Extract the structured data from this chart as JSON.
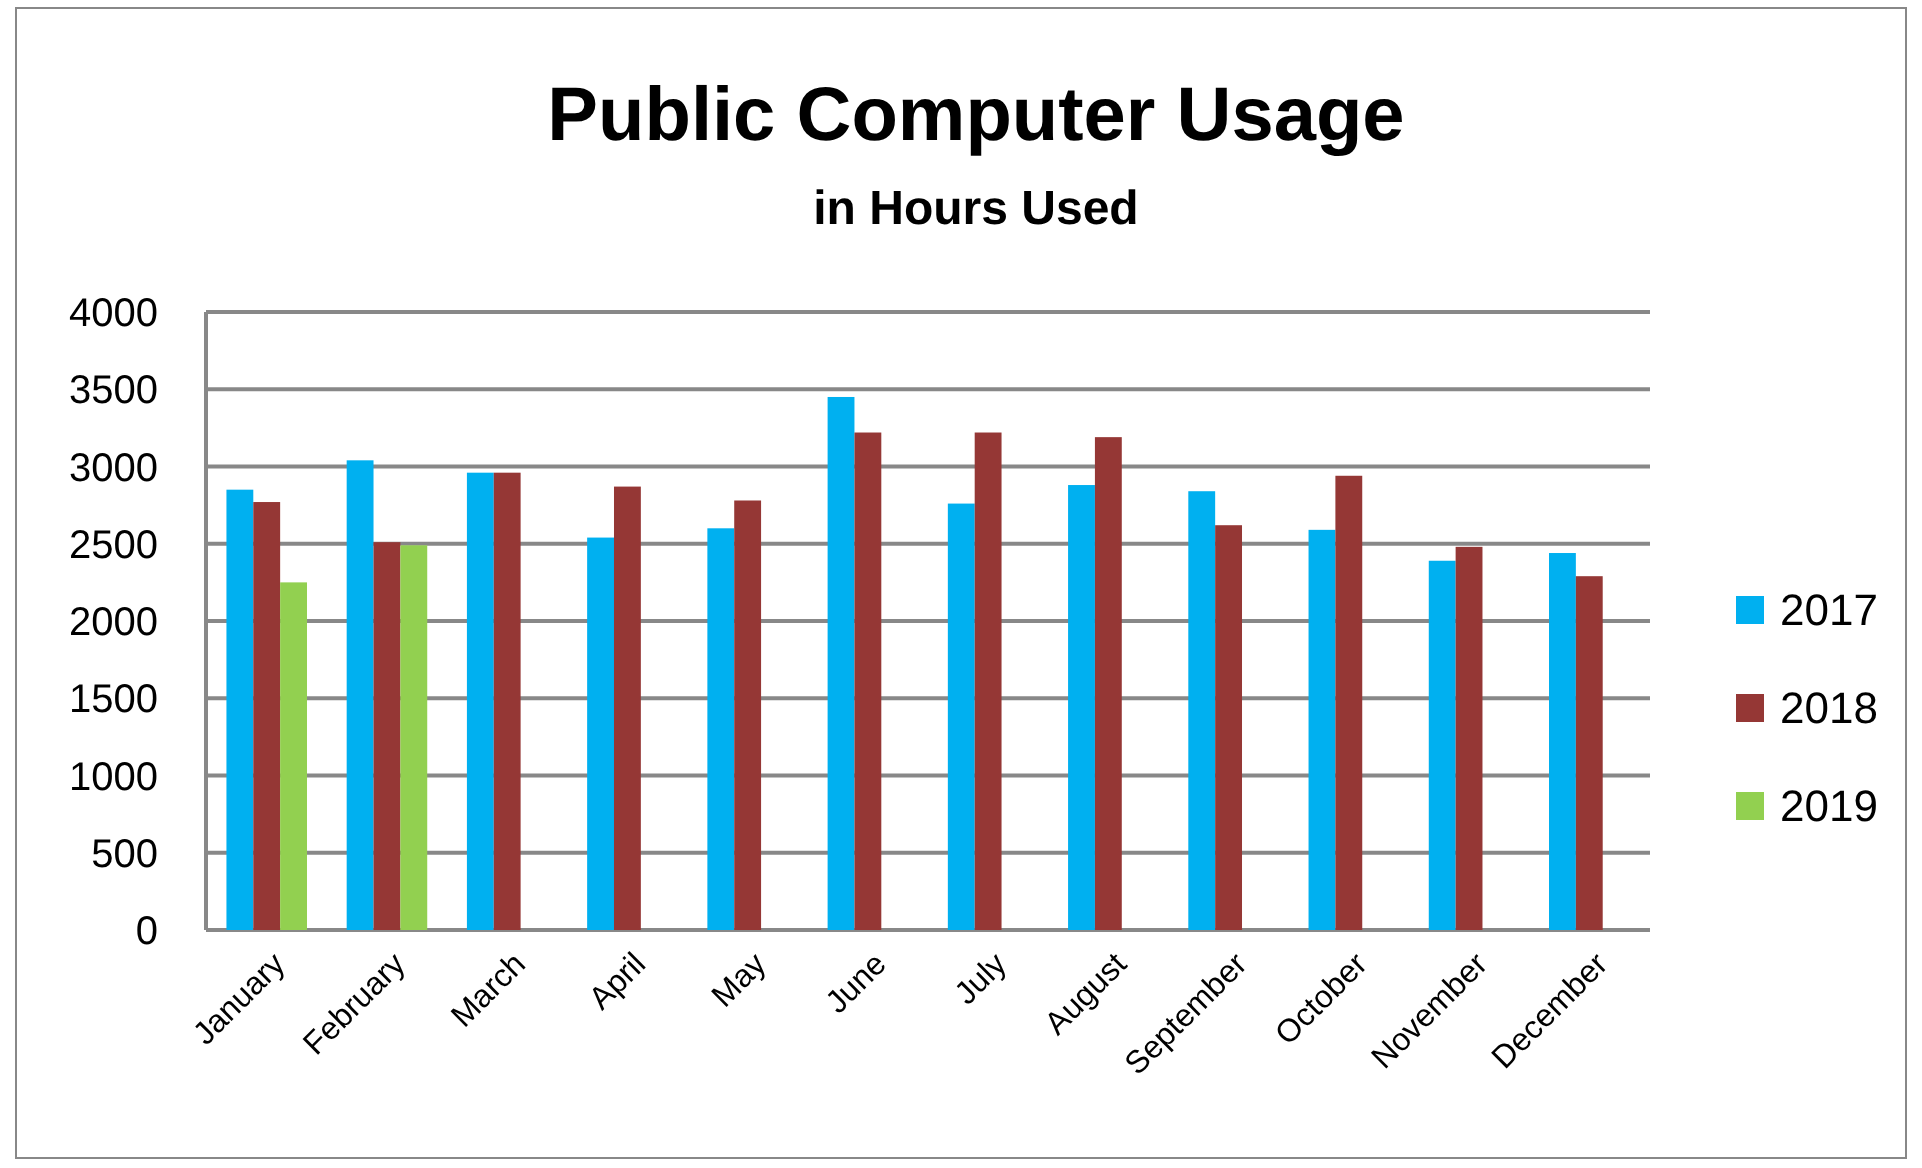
{
  "chart_data": {
    "type": "bar",
    "title": "Public Computer Usage",
    "subtitle": "in Hours Used",
    "categories": [
      "January",
      "February",
      "March",
      "April",
      "May",
      "June",
      "July",
      "August",
      "September",
      "October",
      "November",
      "December"
    ],
    "series": [
      {
        "name": "2017",
        "color": "#00b0f0",
        "values": [
          2850,
          3040,
          2960,
          2540,
          2600,
          3450,
          2760,
          2880,
          2840,
          2590,
          2390,
          2440
        ]
      },
      {
        "name": "2018",
        "color": "#953735",
        "values": [
          2770,
          2510,
          2960,
          2870,
          2780,
          3220,
          3220,
          3190,
          2620,
          2940,
          2480,
          2290
        ]
      },
      {
        "name": "2019",
        "color": "#92d050",
        "values": [
          2250,
          2490,
          null,
          null,
          null,
          null,
          null,
          null,
          null,
          null,
          null,
          null
        ]
      }
    ],
    "ylim": [
      0,
      4000
    ],
    "yticks": [
      0,
      500,
      1000,
      1500,
      2000,
      2500,
      3000,
      3500,
      4000
    ],
    "grid": "y",
    "legend": "right"
  }
}
